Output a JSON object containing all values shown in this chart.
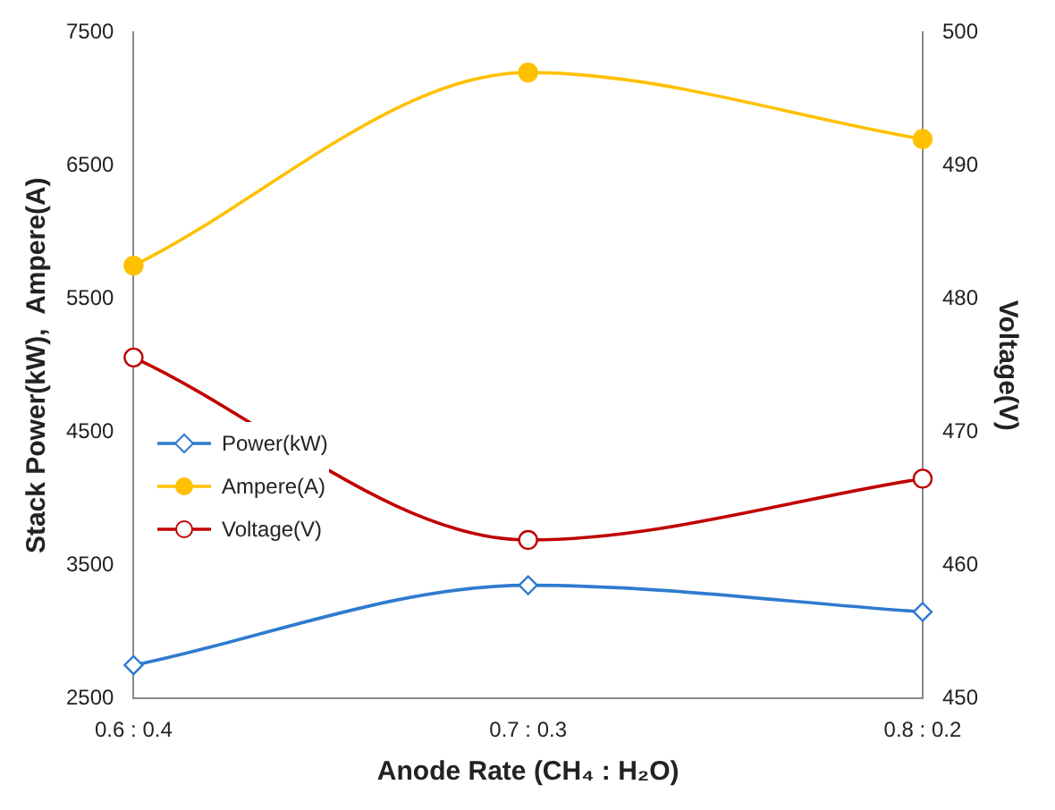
{
  "chart_data": {
    "type": "line",
    "xlabel": "Anode Rate (CH₄ : H₂O)",
    "ylabel": "Stack Power(kW),  Ampere(A)",
    "y2label": "Voltage(V)",
    "categories": [
      "0.6 : 0.4",
      "0.7 : 0.3",
      "0.8 : 0.2"
    ],
    "series": [
      {
        "name": "Power(kW)",
        "color": "#2e7bcf",
        "marker": "diamond",
        "values": [
          2750,
          3350,
          3150
        ]
      },
      {
        "name": "Ampere(A)",
        "color": "#ffc000",
        "marker": "circle",
        "values": [
          5750,
          7200,
          6700
        ]
      },
      {
        "name": "Voltage(V)",
        "color": "#c00000",
        "marker": "circle",
        "axis": "y2",
        "values": [
          475.6,
          461.9,
          466.5
        ]
      }
    ],
    "ylim": [
      2500,
      7500
    ],
    "yticks": [
      2500,
      3500,
      4500,
      5500,
      6500,
      7500
    ],
    "y2lim": [
      450,
      500
    ],
    "y2ticks": [
      450,
      460,
      470,
      480,
      490,
      500
    ],
    "grid": false,
    "legend": "left"
  }
}
